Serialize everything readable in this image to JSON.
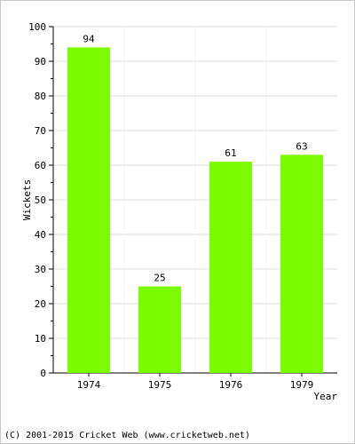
{
  "chart_data": {
    "type": "bar",
    "categories": [
      "1974",
      "1975",
      "1976",
      "1979"
    ],
    "values": [
      94,
      25,
      61,
      63
    ],
    "data_labels": [
      "94",
      "25",
      "61",
      "63"
    ],
    "xlabel": "Year",
    "ylabel": "Wickets",
    "ylim": [
      0,
      100
    ],
    "yticks": [
      "0",
      "10",
      "20",
      "30",
      "40",
      "50",
      "60",
      "70",
      "80",
      "90",
      "100"
    ],
    "grid": true,
    "bar_color": "#7cfc00"
  },
  "footer": {
    "copyright": "(C) 2001-2015 Cricket Web (www.cricketweb.net)"
  }
}
